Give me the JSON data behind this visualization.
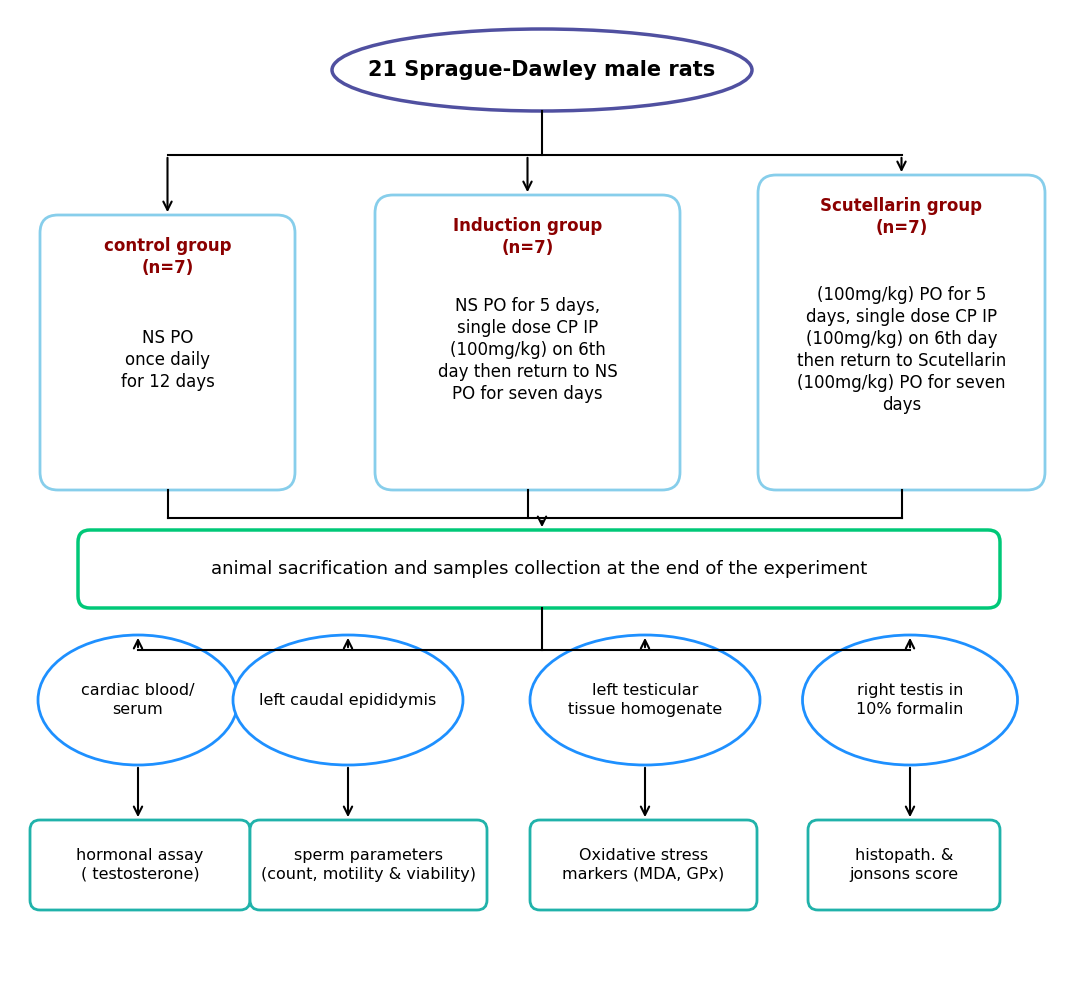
{
  "title_text": "21 Sprague-Dawley male rats",
  "title_ellipse_color": "#5050A0",
  "group_box_border_color": "#87CEEB",
  "group_title_color": "#8B0000",
  "sacrifice_box_border_color": "#00C878",
  "sacrifice_text": "animal sacrification and samples collection at the end of the experiment",
  "bottom_ellipse_color": "#1E90FF",
  "bottom_box_color": "#20B2AA",
  "control_title": "control group\n(n=7)",
  "control_body": "NS PO\nonce daily\nfor 12 days",
  "induction_title": "Induction group\n(n=7)",
  "induction_body": "NS PO for 5 days,\nsingle dose CP IP\n(100mg/kg) on 6th\nday then return to NS\nPO for seven days",
  "scutellarin_title": "Scutellarin group\n(n=7)",
  "scutellarin_body": "(100mg/kg) PO for 5\ndays, single dose CP IP\n(100mg/kg) on 6th day\nthen return to Scutellarin\n(100mg/kg) PO for seven\ndays",
  "ellipse1_text": "cardiac blood/\nserum",
  "ellipse2_text": "left caudal epididymis",
  "ellipse3_text": "left testicular\ntissue homogenate",
  "ellipse4_text": "right testis in\n10% formalin",
  "box1_text": "hormonal assay\n( testosterone)",
  "box2_text": "sperm parameters\n(count, motility & viability)",
  "box3_text": "Oxidative stress\nmarkers (MDA, GPx)",
  "box4_text": "histopath. &\njonsons score"
}
